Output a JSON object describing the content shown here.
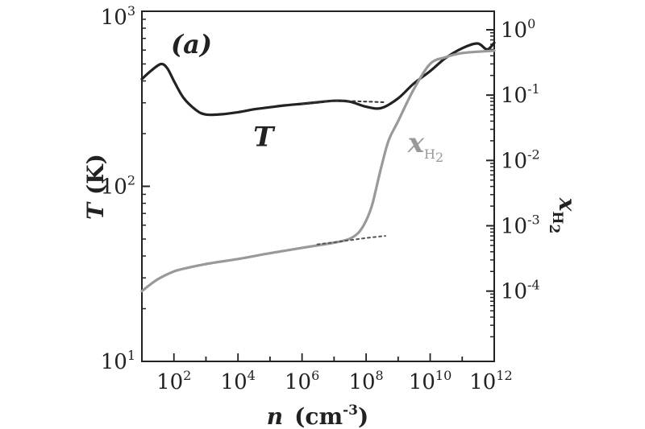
{
  "chart_data": {
    "type": "line",
    "panel_label": "(a)",
    "x_axis": {
      "scale": "log",
      "range": [
        10,
        1000000000000.0
      ],
      "title_var": "n",
      "title_unit_base": "(cm",
      "title_unit_exp": "-3",
      "title_unit_close": ")",
      "ticks": [
        {
          "value": 100,
          "base": "10",
          "exp": "2"
        },
        {
          "value": 10000,
          "base": "10",
          "exp": "4"
        },
        {
          "value": 1000000,
          "base": "10",
          "exp": "6"
        },
        {
          "value": 100000000,
          "base": "10",
          "exp": "8"
        },
        {
          "value": 10000000000,
          "base": "10",
          "exp": "10"
        },
        {
          "value": 1000000000000,
          "base": "10",
          "exp": "12"
        }
      ]
    },
    "y_left": {
      "scale": "log",
      "range": [
        10,
        1000
      ],
      "title_var": "T",
      "title_unit": "(K)",
      "ticks": [
        {
          "value": 10,
          "base": "10",
          "exp": "1"
        },
        {
          "value": 100,
          "base": "10",
          "exp": "2"
        },
        {
          "value": 1000,
          "base": "10",
          "exp": "3"
        }
      ]
    },
    "y_right": {
      "scale": "log",
      "range": [
        8.4e-06,
        1.92
      ],
      "title_var": "x",
      "title_sub": "H",
      "title_sub2": "2",
      "ticks": [
        {
          "value": 1,
          "base": "10",
          "exp": "0"
        },
        {
          "value": 0.1,
          "base": "10",
          "exp": "-1"
        },
        {
          "value": 0.01,
          "base": "10",
          "exp": "-2"
        },
        {
          "value": 0.001,
          "base": "10",
          "exp": "-3"
        },
        {
          "value": 0.0001,
          "base": "10",
          "exp": "-4"
        }
      ]
    },
    "series": [
      {
        "name": "T",
        "axis": "left",
        "color": "#222222",
        "style": "solid",
        "label_text": "T",
        "x": [
          10,
          20,
          40,
          63,
          100,
          200,
          500,
          1000,
          3000,
          10000,
          30000,
          100000,
          300000,
          1000000,
          3000000,
          10000000,
          30000000,
          100000000,
          300000000,
          1000000000,
          3000000000,
          10000000000,
          30000000000,
          100000000000,
          300000000000,
          600000000000,
          1000000000000
        ],
        "values": [
          410,
          460,
          500,
          470,
          400,
          320,
          272,
          257,
          258,
          265,
          275,
          283,
          290,
          296,
          302,
          308,
          305,
          285,
          280,
          318,
          385,
          455,
          540,
          615,
          655,
          605,
          660
        ]
      },
      {
        "name": "T (dotted)",
        "axis": "left",
        "color": "#333333",
        "style": "dotted",
        "x": [
          1000000,
          10000000,
          30000000,
          100000000,
          400000000
        ],
        "values": [
          297,
          307,
          307,
          305,
          302
        ]
      },
      {
        "name": "xH2",
        "axis": "right",
        "color": "#999999",
        "style": "solid",
        "x": [
          10,
          30,
          100,
          300,
          1000,
          10000,
          100000,
          1000000,
          10000000,
          30000000,
          60000000,
          100000000,
          150000000,
          200000000,
          300000000,
          500000000,
          1000000000,
          3000000000,
          10000000000,
          30000000000,
          100000000000,
          1000000000000
        ],
        "values": [
          0.0001,
          0.00015,
          0.0002,
          0.00023,
          0.00026,
          0.00031,
          0.00038,
          0.00046,
          0.00055,
          0.00063,
          0.0008,
          0.0012,
          0.002,
          0.0035,
          0.008,
          0.02,
          0.04,
          0.12,
          0.3,
          0.38,
          0.44,
          0.48
        ]
      },
      {
        "name": "xH2 (dotted)",
        "axis": "right",
        "color": "#555555",
        "style": "dotted",
        "x": [
          3000000,
          10000000,
          30000000,
          100000000,
          400000000
        ],
        "values": [
          0.00052,
          0.00056,
          0.0006,
          0.00065,
          0.0007
        ]
      }
    ],
    "curve_labels": [
      {
        "series": "T",
        "text": "T",
        "at": [
          30000,
          170
        ]
      },
      {
        "series": "xH2",
        "text": "x",
        "sub": "H",
        "sub2": "2",
        "at": [
          2000000000,
          0.0135
        ]
      }
    ],
    "grid": false,
    "legend": "none"
  }
}
